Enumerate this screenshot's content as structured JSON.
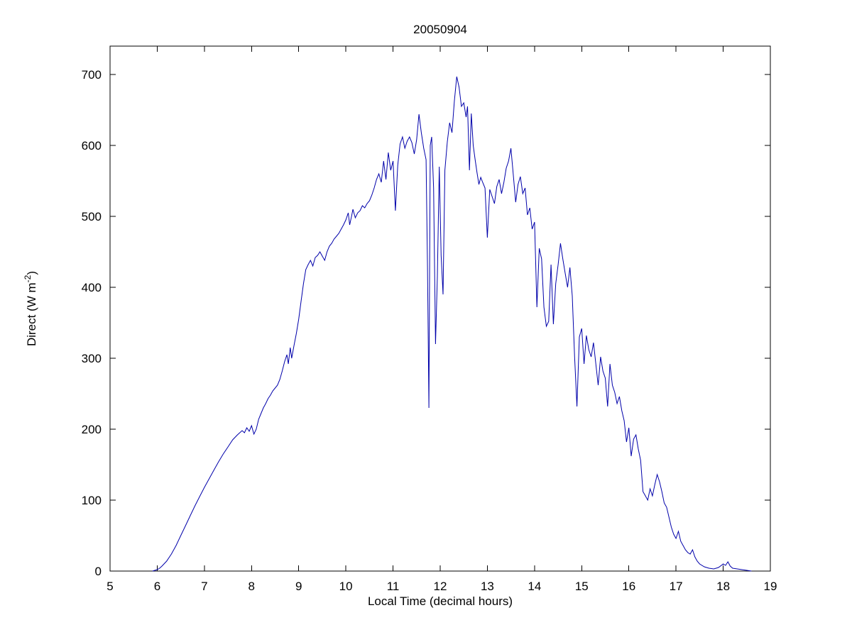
{
  "page": {
    "background": "#ffffff"
  },
  "chart_data": {
    "type": "line",
    "title": "20050904",
    "xlabel": "Local Time (decimal hours)",
    "ylabel": "Direct (W m^-2)",
    "ylabel_parts": {
      "main": "Direct (W m",
      "sup": "-2",
      "close": ")"
    },
    "xlim": [
      5,
      19
    ],
    "ylim": [
      0,
      740
    ],
    "xticks": [
      5,
      6,
      7,
      8,
      9,
      10,
      11,
      12,
      13,
      14,
      15,
      16,
      17,
      18,
      19
    ],
    "yticks": [
      0,
      100,
      200,
      300,
      400,
      500,
      600,
      700
    ],
    "line_color": "#0000AA",
    "axis_color": "#000000",
    "grid": "off",
    "legend": "none",
    "points": [
      [
        5.9,
        0
      ],
      [
        5.95,
        1
      ],
      [
        6.0,
        2
      ],
      [
        6.05,
        4
      ],
      [
        6.1,
        7
      ],
      [
        6.2,
        14
      ],
      [
        6.3,
        24
      ],
      [
        6.4,
        36
      ],
      [
        6.5,
        50
      ],
      [
        6.6,
        64
      ],
      [
        6.7,
        78
      ],
      [
        6.8,
        92
      ],
      [
        6.9,
        105
      ],
      [
        7.0,
        118
      ],
      [
        7.1,
        130
      ],
      [
        7.2,
        142
      ],
      [
        7.3,
        154
      ],
      [
        7.4,
        165
      ],
      [
        7.5,
        175
      ],
      [
        7.6,
        185
      ],
      [
        7.7,
        192
      ],
      [
        7.8,
        198
      ],
      [
        7.85,
        195
      ],
      [
        7.9,
        202
      ],
      [
        7.95,
        197
      ],
      [
        8.0,
        205
      ],
      [
        8.05,
        193
      ],
      [
        8.1,
        200
      ],
      [
        8.15,
        214
      ],
      [
        8.2,
        222
      ],
      [
        8.25,
        230
      ],
      [
        8.3,
        236
      ],
      [
        8.35,
        243
      ],
      [
        8.4,
        248
      ],
      [
        8.45,
        254
      ],
      [
        8.5,
        258
      ],
      [
        8.55,
        262
      ],
      [
        8.6,
        270
      ],
      [
        8.65,
        282
      ],
      [
        8.7,
        295
      ],
      [
        8.75,
        305
      ],
      [
        8.78,
        292
      ],
      [
        8.82,
        315
      ],
      [
        8.85,
        300
      ],
      [
        8.9,
        318
      ],
      [
        8.95,
        335
      ],
      [
        9.0,
        355
      ],
      [
        9.05,
        380
      ],
      [
        9.1,
        405
      ],
      [
        9.15,
        425
      ],
      [
        9.2,
        432
      ],
      [
        9.25,
        438
      ],
      [
        9.3,
        430
      ],
      [
        9.35,
        442
      ],
      [
        9.4,
        445
      ],
      [
        9.45,
        450
      ],
      [
        9.5,
        444
      ],
      [
        9.55,
        438
      ],
      [
        9.6,
        450
      ],
      [
        9.65,
        458
      ],
      [
        9.7,
        462
      ],
      [
        9.75,
        468
      ],
      [
        9.8,
        472
      ],
      [
        9.85,
        476
      ],
      [
        9.9,
        482
      ],
      [
        9.95,
        488
      ],
      [
        10.0,
        495
      ],
      [
        10.05,
        505
      ],
      [
        10.08,
        488
      ],
      [
        10.12,
        500
      ],
      [
        10.15,
        510
      ],
      [
        10.2,
        498
      ],
      [
        10.25,
        505
      ],
      [
        10.3,
        508
      ],
      [
        10.35,
        515
      ],
      [
        10.4,
        512
      ],
      [
        10.45,
        518
      ],
      [
        10.5,
        522
      ],
      [
        10.55,
        530
      ],
      [
        10.6,
        540
      ],
      [
        10.65,
        552
      ],
      [
        10.7,
        560
      ],
      [
        10.75,
        548
      ],
      [
        10.8,
        578
      ],
      [
        10.85,
        552
      ],
      [
        10.9,
        590
      ],
      [
        10.95,
        565
      ],
      [
        11.0,
        578
      ],
      [
        11.05,
        508
      ],
      [
        11.1,
        572
      ],
      [
        11.15,
        602
      ],
      [
        11.2,
        612
      ],
      [
        11.25,
        596
      ],
      [
        11.3,
        606
      ],
      [
        11.35,
        612
      ],
      [
        11.4,
        604
      ],
      [
        11.45,
        588
      ],
      [
        11.5,
        608
      ],
      [
        11.55,
        644
      ],
      [
        11.6,
        618
      ],
      [
        11.65,
        596
      ],
      [
        11.7,
        580
      ],
      [
        11.73,
        430
      ],
      [
        11.76,
        230
      ],
      [
        11.79,
        600
      ],
      [
        11.82,
        612
      ],
      [
        11.86,
        540
      ],
      [
        11.9,
        320
      ],
      [
        11.94,
        415
      ],
      [
        11.98,
        570
      ],
      [
        12.02,
        445
      ],
      [
        12.06,
        390
      ],
      [
        12.1,
        565
      ],
      [
        12.15,
        605
      ],
      [
        12.2,
        632
      ],
      [
        12.25,
        618
      ],
      [
        12.3,
        662
      ],
      [
        12.35,
        697
      ],
      [
        12.4,
        682
      ],
      [
        12.45,
        655
      ],
      [
        12.5,
        660
      ],
      [
        12.55,
        640
      ],
      [
        12.58,
        655
      ],
      [
        12.62,
        565
      ],
      [
        12.66,
        645
      ],
      [
        12.7,
        600
      ],
      [
        12.74,
        580
      ],
      [
        12.78,
        562
      ],
      [
        12.82,
        545
      ],
      [
        12.86,
        555
      ],
      [
        12.9,
        548
      ],
      [
        12.95,
        540
      ],
      [
        13.0,
        470
      ],
      [
        13.05,
        538
      ],
      [
        13.1,
        528
      ],
      [
        13.15,
        518
      ],
      [
        13.2,
        542
      ],
      [
        13.25,
        552
      ],
      [
        13.3,
        532
      ],
      [
        13.35,
        548
      ],
      [
        13.4,
        568
      ],
      [
        13.45,
        578
      ],
      [
        13.5,
        596
      ],
      [
        13.55,
        558
      ],
      [
        13.6,
        520
      ],
      [
        13.65,
        545
      ],
      [
        13.7,
        556
      ],
      [
        13.75,
        532
      ],
      [
        13.8,
        540
      ],
      [
        13.85,
        502
      ],
      [
        13.9,
        512
      ],
      [
        13.95,
        482
      ],
      [
        14.0,
        492
      ],
      [
        14.05,
        372
      ],
      [
        14.1,
        455
      ],
      [
        14.15,
        440
      ],
      [
        14.2,
        372
      ],
      [
        14.25,
        345
      ],
      [
        14.3,
        352
      ],
      [
        14.35,
        432
      ],
      [
        14.4,
        348
      ],
      [
        14.45,
        405
      ],
      [
        14.5,
        432
      ],
      [
        14.55,
        462
      ],
      [
        14.6,
        440
      ],
      [
        14.65,
        420
      ],
      [
        14.7,
        400
      ],
      [
        14.75,
        428
      ],
      [
        14.8,
        388
      ],
      [
        14.85,
        302
      ],
      [
        14.9,
        232
      ],
      [
        14.95,
        330
      ],
      [
        15.0,
        342
      ],
      [
        15.05,
        292
      ],
      [
        15.1,
        332
      ],
      [
        15.15,
        312
      ],
      [
        15.2,
        302
      ],
      [
        15.25,
        322
      ],
      [
        15.3,
        292
      ],
      [
        15.35,
        262
      ],
      [
        15.4,
        302
      ],
      [
        15.45,
        282
      ],
      [
        15.5,
        272
      ],
      [
        15.55,
        232
      ],
      [
        15.6,
        292
      ],
      [
        15.65,
        262
      ],
      [
        15.7,
        252
      ],
      [
        15.75,
        236
      ],
      [
        15.8,
        246
      ],
      [
        15.85,
        226
      ],
      [
        15.9,
        212
      ],
      [
        15.95,
        182
      ],
      [
        16.0,
        202
      ],
      [
        16.05,
        162
      ],
      [
        16.1,
        186
      ],
      [
        16.15,
        192
      ],
      [
        16.2,
        172
      ],
      [
        16.25,
        156
      ],
      [
        16.3,
        112
      ],
      [
        16.35,
        106
      ],
      [
        16.4,
        100
      ],
      [
        16.45,
        116
      ],
      [
        16.5,
        106
      ],
      [
        16.55,
        122
      ],
      [
        16.6,
        136
      ],
      [
        16.65,
        126
      ],
      [
        16.7,
        112
      ],
      [
        16.75,
        96
      ],
      [
        16.8,
        90
      ],
      [
        16.85,
        76
      ],
      [
        16.9,
        62
      ],
      [
        16.95,
        52
      ],
      [
        17.0,
        46
      ],
      [
        17.05,
        56
      ],
      [
        17.1,
        42
      ],
      [
        17.15,
        36
      ],
      [
        17.2,
        30
      ],
      [
        17.25,
        26
      ],
      [
        17.3,
        24
      ],
      [
        17.35,
        30
      ],
      [
        17.4,
        20
      ],
      [
        17.45,
        14
      ],
      [
        17.5,
        10
      ],
      [
        17.6,
        6
      ],
      [
        17.7,
        4
      ],
      [
        17.8,
        3
      ],
      [
        17.9,
        5
      ],
      [
        18.0,
        10
      ],
      [
        18.05,
        8
      ],
      [
        18.1,
        13
      ],
      [
        18.15,
        7
      ],
      [
        18.2,
        4
      ],
      [
        18.3,
        3
      ],
      [
        18.4,
        2
      ],
      [
        18.5,
        1
      ],
      [
        18.6,
        0
      ]
    ]
  }
}
